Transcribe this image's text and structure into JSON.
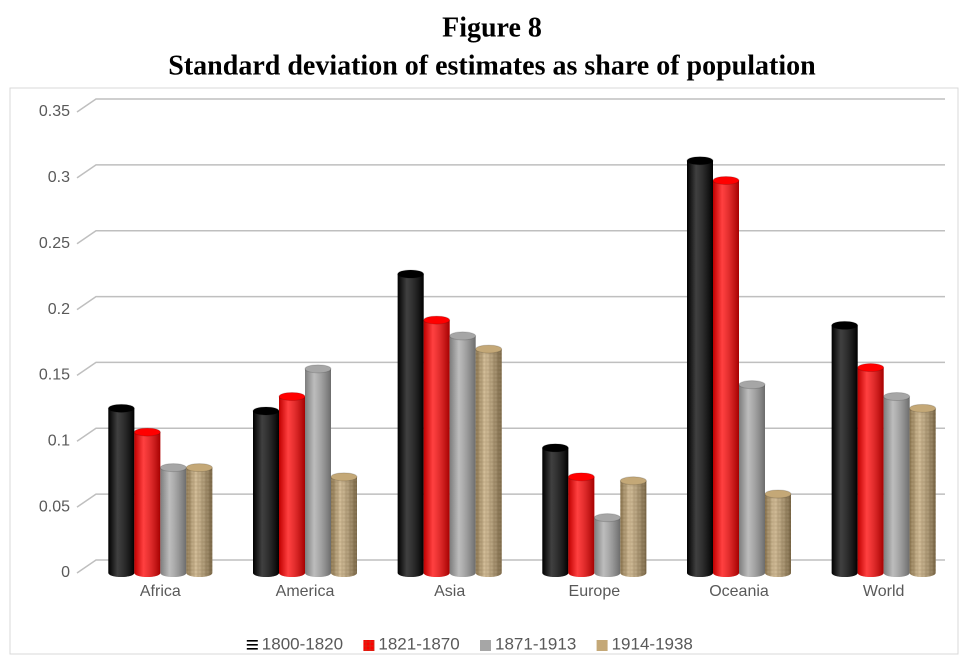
{
  "chart_data": {
    "type": "bar",
    "title": "Figure 8",
    "subtitle": "Standard deviation of estimates as share of population",
    "categories": [
      "Africa",
      "America",
      "Asia",
      "Europe",
      "Oceania",
      "World"
    ],
    "series": [
      {
        "name": "1800-1820",
        "color": "#000000",
        "values": [
          0.125,
          0.123,
          0.227,
          0.095,
          0.313,
          0.188
        ]
      },
      {
        "name": "1821-1870",
        "color": "#ff0000",
        "values": [
          0.107,
          0.134,
          0.192,
          0.073,
          0.298,
          0.156
        ]
      },
      {
        "name": "1871-1913",
        "color": "#a6a6a6",
        "values": [
          0.08,
          0.155,
          0.18,
          0.042,
          0.143,
          0.134
        ]
      },
      {
        "name": "1914-1938",
        "color": "#c4a877",
        "values": [
          0.08,
          0.073,
          0.17,
          0.07,
          0.06,
          0.125
        ]
      }
    ],
    "ylim": [
      0,
      0.35
    ],
    "yticks": [
      0,
      0.05,
      0.1,
      0.15,
      0.2,
      0.25,
      0.3,
      0.35
    ],
    "grid": true,
    "legend": "bottom"
  }
}
